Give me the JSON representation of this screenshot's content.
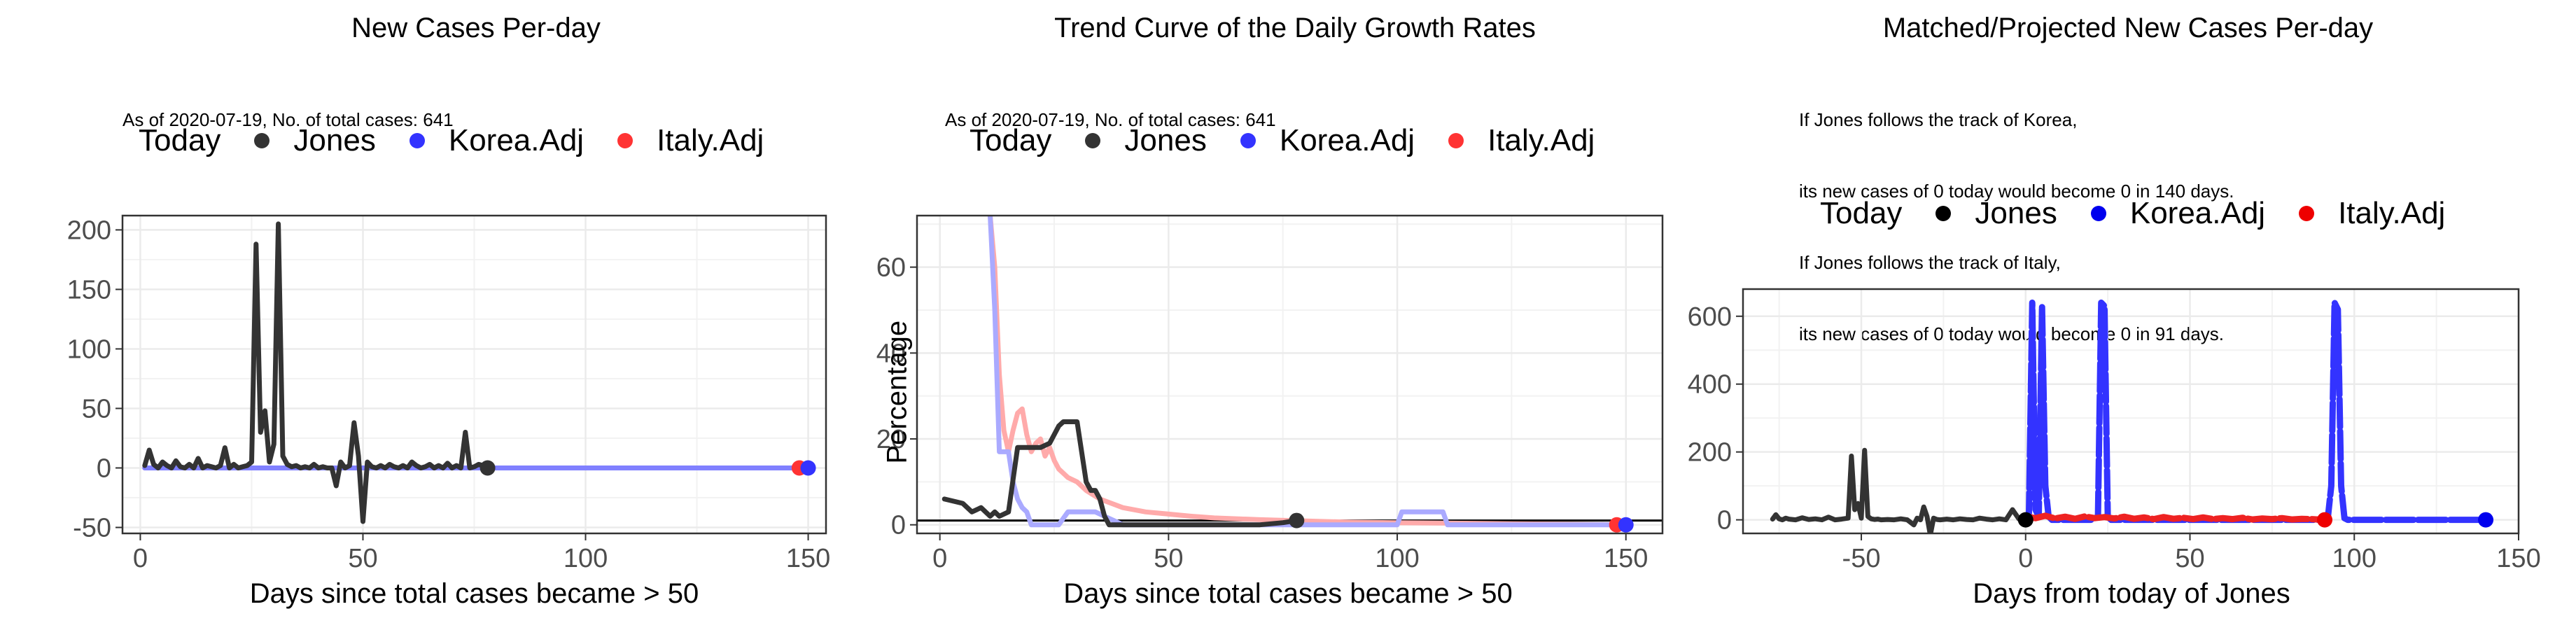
{
  "chart_data": [
    {
      "type": "line",
      "title": "New Cases Per-day",
      "subtitle_lines": [
        "As of 2020-07-19, No. of total cases: 641"
      ],
      "xlabel": "Days since total cases became > 50",
      "ylabel": "",
      "xlim": [
        -4,
        154
      ],
      "ylim": [
        -55,
        212
      ],
      "xticks": [
        0,
        50,
        100,
        150
      ],
      "yticks": [
        -50,
        0,
        50,
        100,
        150,
        200
      ],
      "grid": true,
      "legend": {
        "title": "Today",
        "position": "top",
        "entries": [
          {
            "name": "Jones",
            "color": "#333333"
          },
          {
            "name": "Korea.Adj",
            "color": "#3333FF"
          },
          {
            "name": "Italy.Adj",
            "color": "#FF3333"
          }
        ]
      },
      "series": [
        {
          "name": "Italy.Adj",
          "color": "#FF8080",
          "x": [
            1,
            148
          ],
          "y": [
            0,
            0
          ]
        },
        {
          "name": "Korea.Adj",
          "color": "#8080FF",
          "x": [
            1,
            150
          ],
          "y": [
            0,
            0
          ]
        },
        {
          "name": "Jones",
          "color": "#333333",
          "x": [
            1,
            2,
            3,
            4,
            5,
            6,
            7,
            8,
            9,
            10,
            11,
            12,
            13,
            14,
            15,
            16,
            17,
            18,
            19,
            20,
            21,
            22,
            23,
            24,
            25,
            26,
            27,
            28,
            29,
            30,
            31,
            32,
            33,
            34,
            35,
            36,
            37,
            38,
            39,
            40,
            41,
            42,
            43,
            44,
            45,
            46,
            47,
            48,
            49,
            50,
            51,
            52,
            53,
            54,
            55,
            56,
            57,
            58,
            59,
            60,
            61,
            62,
            63,
            64,
            65,
            66,
            67,
            68,
            69,
            70,
            71,
            72,
            73,
            74,
            75,
            76,
            77,
            78
          ],
          "y": [
            2,
            15,
            3,
            0,
            5,
            2,
            0,
            6,
            1,
            0,
            3,
            0,
            8,
            0,
            2,
            1,
            0,
            2,
            17,
            0,
            3,
            0,
            1,
            2,
            5,
            188,
            30,
            48,
            5,
            20,
            205,
            10,
            3,
            1,
            2,
            0,
            1,
            0,
            3,
            0,
            1,
            0,
            0,
            -15,
            5,
            0,
            2,
            38,
            10,
            -45,
            5,
            1,
            0,
            2,
            0,
            3,
            1,
            0,
            2,
            0,
            5,
            2,
            0,
            1,
            3,
            0,
            2,
            0,
            4,
            0,
            2,
            0,
            30,
            0,
            1,
            3,
            2,
            0
          ]
        }
      ],
      "today_points": [
        {
          "name": "Jones",
          "x": 78,
          "y": 0,
          "color": "#333333"
        },
        {
          "name": "Italy.Adj",
          "x": 148,
          "y": 0,
          "color": "#FF3333"
        },
        {
          "name": "Korea.Adj",
          "x": 150,
          "y": 0,
          "color": "#3333FF"
        }
      ]
    },
    {
      "type": "line",
      "title": "Trend Curve of the Daily Growth Rates",
      "subtitle_lines": [
        "As of 2020-07-19, No. of total cases: 641"
      ],
      "xlabel": "Days since total cases became > 50",
      "ylabel": "Percentage",
      "xlim": [
        -5,
        158
      ],
      "ylim": [
        -2,
        72
      ],
      "xticks": [
        0,
        50,
        100,
        150
      ],
      "yticks": [
        0,
        20,
        40,
        60
      ],
      "grid": true,
      "hline": 1,
      "legend": {
        "title": "Today",
        "position": "top",
        "entries": [
          {
            "name": "Jones",
            "color": "#333333"
          },
          {
            "name": "Korea.Adj",
            "color": "#3333FF"
          },
          {
            "name": "Italy.Adj",
            "color": "#FF3333"
          }
        ]
      },
      "series": [
        {
          "name": "Italy.Adj",
          "color": "#FFAAAA",
          "x": [
            11,
            12,
            13,
            14,
            15,
            16,
            17,
            18,
            19,
            20,
            21,
            22,
            23,
            24,
            25,
            26,
            27,
            28,
            30,
            32,
            35,
            40,
            45,
            50,
            55,
            60,
            70,
            80,
            90,
            100,
            110,
            120,
            130,
            140,
            148
          ],
          "y": [
            72,
            60,
            35,
            22,
            17,
            22,
            26,
            27,
            21,
            17,
            19,
            20,
            16,
            18,
            15,
            13,
            12,
            11,
            10,
            8,
            6,
            4,
            3,
            2.5,
            2,
            1.6,
            1.2,
            0.9,
            0.6,
            0.5,
            0.4,
            0.3,
            0.2,
            0.1,
            0
          ]
        },
        {
          "name": "Korea.Adj",
          "color": "#AAAAFF",
          "x": [
            11,
            12,
            13,
            14,
            15,
            16,
            17,
            18,
            19,
            20,
            22,
            24,
            26,
            28,
            30,
            32,
            34,
            36,
            38,
            40,
            50,
            60,
            70,
            80,
            90,
            100,
            101,
            102,
            108,
            110,
            111,
            120,
            130,
            140,
            150
          ],
          "y": [
            72,
            50,
            17,
            17,
            17,
            10,
            6,
            4,
            3,
            0,
            0,
            0,
            0,
            3,
            3,
            3,
            3,
            2,
            1,
            0,
            0,
            0,
            0,
            0,
            0,
            0,
            3,
            3,
            3,
            3,
            0,
            0,
            0,
            0,
            0
          ]
        },
        {
          "name": "Jones",
          "color": "#333333",
          "x": [
            1,
            3,
            5,
            7,
            9,
            11,
            12,
            13,
            15,
            17,
            18,
            19,
            20,
            22,
            24,
            26,
            27,
            28,
            29,
            30,
            31,
            32,
            33,
            34,
            35,
            36,
            37,
            38,
            40,
            42,
            45,
            50,
            55,
            60,
            65,
            70,
            75,
            78
          ],
          "y": [
            6,
            5.5,
            5,
            3,
            4,
            2,
            3,
            2,
            3,
            18,
            18,
            18,
            18,
            18,
            19,
            23,
            24,
            24,
            24,
            24,
            17,
            10,
            8,
            8,
            6,
            2,
            0,
            0,
            0,
            0,
            0,
            0,
            0,
            0,
            0,
            0,
            0.5,
            1
          ]
        }
      ],
      "today_points": [
        {
          "name": "Jones",
          "x": 78,
          "y": 1,
          "color": "#333333"
        },
        {
          "name": "Italy.Adj",
          "x": 148,
          "y": 0,
          "color": "#FF3333"
        },
        {
          "name": "Korea.Adj",
          "x": 150,
          "y": 0,
          "color": "#3333FF"
        }
      ]
    },
    {
      "type": "line",
      "title": "Matched/Projected New Cases Per-day",
      "subtitle_lines": [
        "If Jones follows the track of Korea,",
        "its new cases of 0 today would become 0 in 140 days.",
        "If Jones follows the track of Italy,",
        "its new cases of 0 today would become 0 in 91 days."
      ],
      "xlabel": "Days from today of Jones",
      "ylabel": "",
      "xlim": [
        -86,
        150
      ],
      "ylim": [
        -40,
        680
      ],
      "xticks": [
        -50,
        0,
        50,
        100,
        150
      ],
      "yticks": [
        0,
        200,
        400,
        600
      ],
      "grid": true,
      "legend": {
        "title": "Today",
        "position": "top",
        "entries": [
          {
            "name": "Jones",
            "color": "#000000"
          },
          {
            "name": "Korea.Adj",
            "color": "#0000EE"
          },
          {
            "name": "Italy.Adj",
            "color": "#EE0000"
          }
        ]
      },
      "series": [
        {
          "name": "Jones",
          "color": "#333333",
          "x": [
            -77,
            -76,
            -75,
            -74,
            -73,
            -72,
            -70,
            -68,
            -66,
            -64,
            -62,
            -60,
            -58,
            -56,
            -54,
            -53,
            -52,
            -51,
            -50,
            -49,
            -48,
            -47,
            -46,
            -45,
            -44,
            -42,
            -40,
            -38,
            -36,
            -34,
            -33,
            -32,
            -31,
            -30,
            -29,
            -28,
            -27,
            -26,
            -24,
            -22,
            -20,
            -18,
            -16,
            -14,
            -12,
            -10,
            -8,
            -6,
            -4,
            -2,
            0
          ],
          "y": [
            2,
            15,
            3,
            0,
            5,
            2,
            0,
            6,
            1,
            3,
            0,
            8,
            0,
            2,
            5,
            188,
            30,
            48,
            5,
            205,
            10,
            3,
            1,
            2,
            0,
            1,
            0,
            3,
            0,
            -15,
            5,
            0,
            38,
            10,
            -45,
            5,
            1,
            0,
            2,
            0,
            3,
            1,
            0,
            5,
            2,
            0,
            3,
            0,
            30,
            2,
            0
          ]
        },
        {
          "name": "Korea.Adj",
          "color": "#3333FF",
          "x": [
            0,
            1,
            2,
            3,
            4,
            5,
            6,
            7,
            8,
            20,
            22,
            23,
            24,
            25,
            26,
            50,
            90,
            92,
            93,
            94,
            95,
            96,
            97,
            98,
            100,
            140
          ],
          "y": [
            0,
            20,
            640,
            30,
            10,
            630,
            100,
            10,
            0,
            0,
            10,
            640,
            630,
            10,
            0,
            0,
            0,
            10,
            100,
            640,
            620,
            100,
            5,
            0,
            0,
            0
          ]
        },
        {
          "name": "Italy.Adj",
          "color": "#EE2222",
          "x": [
            0,
            3,
            6,
            9,
            12,
            15,
            18,
            21,
            24,
            27,
            30,
            33,
            36,
            39,
            42,
            45,
            48,
            51,
            54,
            57,
            60,
            63,
            66,
            69,
            72,
            75,
            78,
            81,
            84,
            87,
            91
          ],
          "y": [
            10,
            5,
            12,
            4,
            9,
            3,
            10,
            5,
            8,
            4,
            9,
            3,
            7,
            2,
            8,
            3,
            6,
            2,
            7,
            2,
            5,
            2,
            6,
            1,
            4,
            2,
            5,
            1,
            3,
            2,
            0
          ]
        }
      ],
      "today_points": [
        {
          "name": "Jones",
          "x": 0,
          "y": 0,
          "color": "#000000"
        },
        {
          "name": "Italy.Adj",
          "x": 91,
          "y": 0,
          "color": "#EE0000"
        },
        {
          "name": "Korea.Adj",
          "x": 140,
          "y": 0,
          "color": "#0000EE"
        }
      ]
    }
  ]
}
